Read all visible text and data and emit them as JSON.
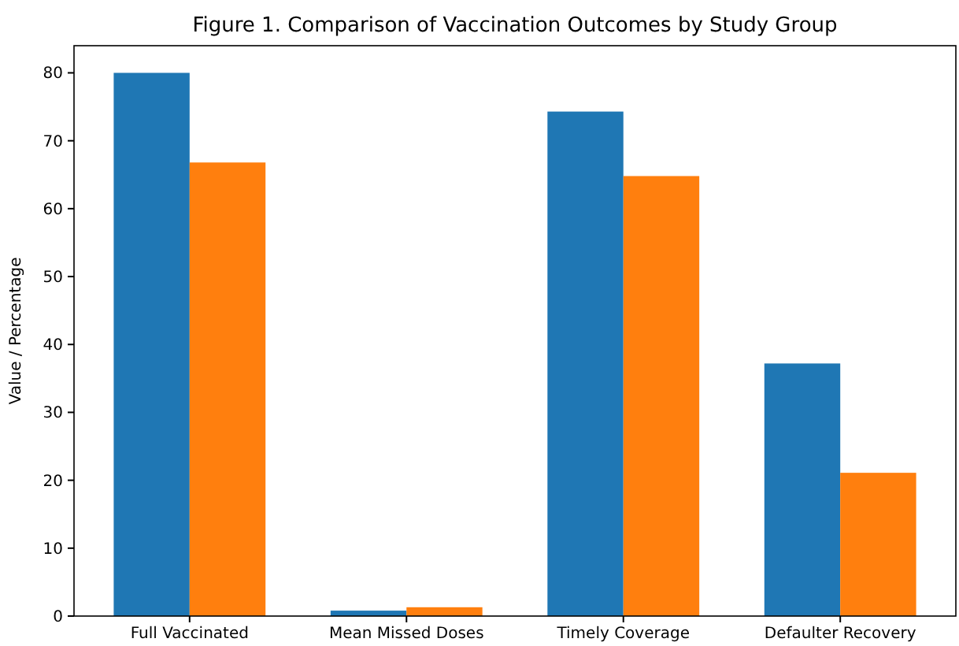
{
  "chart_data": {
    "type": "bar",
    "title": "Figure 1. Comparison of Vaccination Outcomes by Study Group",
    "ylabel": "Value / Percentage",
    "categories": [
      "Full Vaccinated",
      "Mean Missed Doses",
      "Timely Coverage",
      "Defaulter Recovery"
    ],
    "series": [
      {
        "color": "#1f77b4",
        "values": [
          80,
          0.8,
          74.3,
          37.2
        ]
      },
      {
        "color": "#ff7f0e",
        "values": [
          66.8,
          1.3,
          64.8,
          21.1
        ]
      }
    ],
    "ylim": [
      0,
      84
    ],
    "yticks": [
      0,
      10,
      20,
      30,
      40,
      50,
      60,
      70,
      80
    ],
    "grid": false
  }
}
